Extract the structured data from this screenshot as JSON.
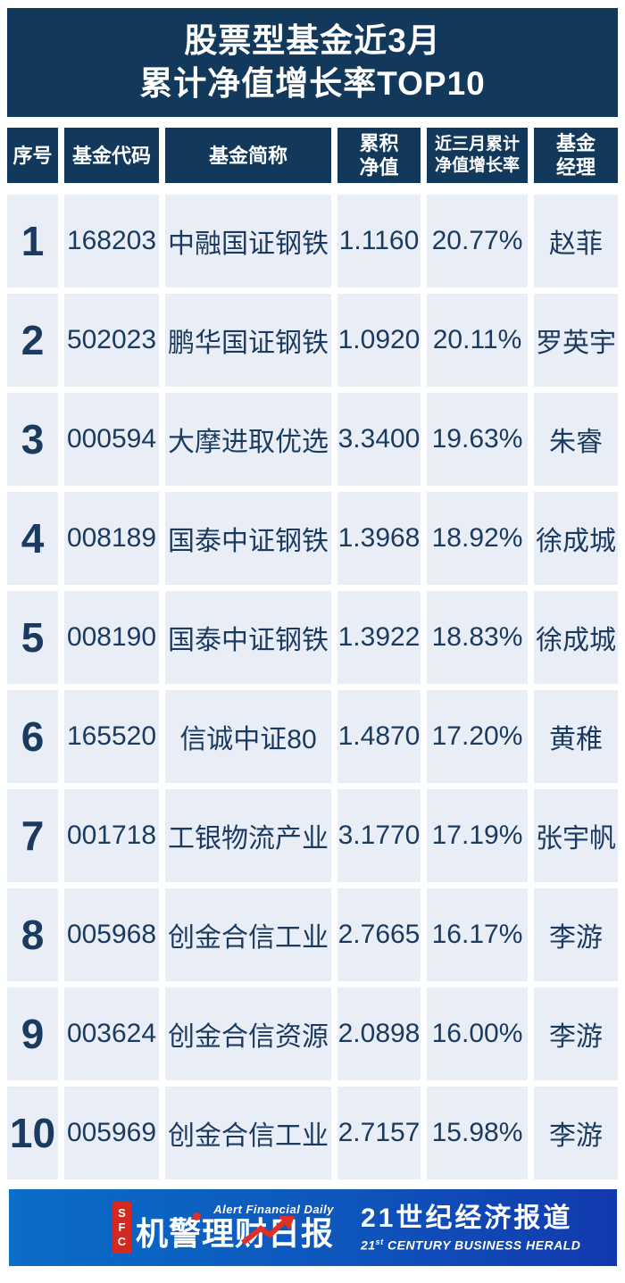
{
  "title": {
    "line1": "股票型基金近3月",
    "line2": "累计净值增长率TOP10"
  },
  "table": {
    "headers": [
      {
        "key": "rank",
        "lines": [
          "序号"
        ]
      },
      {
        "key": "code",
        "lines": [
          "基金代码"
        ]
      },
      {
        "key": "name",
        "lines": [
          "基金简称"
        ]
      },
      {
        "key": "nav",
        "lines": [
          "累积",
          "净值"
        ]
      },
      {
        "key": "growth",
        "lines": [
          "近三月累计",
          "净值增长率"
        ]
      },
      {
        "key": "manager",
        "lines": [
          "基金",
          "经理"
        ]
      }
    ],
    "rows": [
      {
        "rank": "1",
        "code": "168203",
        "name": "中融国证钢铁",
        "nav": "1.1160",
        "growth": "20.77%",
        "manager": "赵菲"
      },
      {
        "rank": "2",
        "code": "502023",
        "name": "鹏华国证钢铁",
        "nav": "1.0920",
        "growth": "20.11%",
        "manager": "罗英宇"
      },
      {
        "rank": "3",
        "code": "000594",
        "name": "大摩进取优选",
        "nav": "3.3400",
        "growth": "19.63%",
        "manager": "朱睿"
      },
      {
        "rank": "4",
        "code": "008189",
        "name": "国泰中证钢铁",
        "nav": "1.3968",
        "growth": "18.92%",
        "manager": "徐成城"
      },
      {
        "rank": "5",
        "code": "008190",
        "name": "国泰中证钢铁",
        "nav": "1.3922",
        "growth": "18.83%",
        "manager": "徐成城"
      },
      {
        "rank": "6",
        "code": "165520",
        "name": "信诚中证80",
        "nav": "1.4870",
        "growth": "17.20%",
        "manager": "黄稚"
      },
      {
        "rank": "7",
        "code": "001718",
        "name": "工银物流产业",
        "nav": "3.1770",
        "growth": "17.19%",
        "manager": "张宇帆"
      },
      {
        "rank": "8",
        "code": "005968",
        "name": "创金合信工业",
        "nav": "2.7665",
        "growth": "16.17%",
        "manager": "李游"
      },
      {
        "rank": "9",
        "code": "003624",
        "name": "创金合信资源",
        "nav": "2.0898",
        "growth": "16.00%",
        "manager": "李游"
      },
      {
        "rank": "10",
        "code": "005969",
        "name": "创金合信工业",
        "nav": "2.7157",
        "growth": "15.98%",
        "manager": "李游"
      }
    ]
  },
  "footer": {
    "sfc_letters": "SFC",
    "logo_en": "Alert Financial Daily",
    "logo_cn": "机警理财日报",
    "brand_cn": "21世纪经济报道",
    "brand_en_num": "21",
    "brand_en_sup": "st",
    "brand_en_rest": " CENTURY BUSINESS HERALD"
  },
  "colors": {
    "navy": "#12395C",
    "row_bg": "#E9EEF6",
    "row_text": "#1A3A5F",
    "footer_gradient_left": "#0A6DC6",
    "footer_gradient_right": "#1239AE",
    "sfc_red": "#D5281E",
    "arrow_red": "#E03026"
  }
}
